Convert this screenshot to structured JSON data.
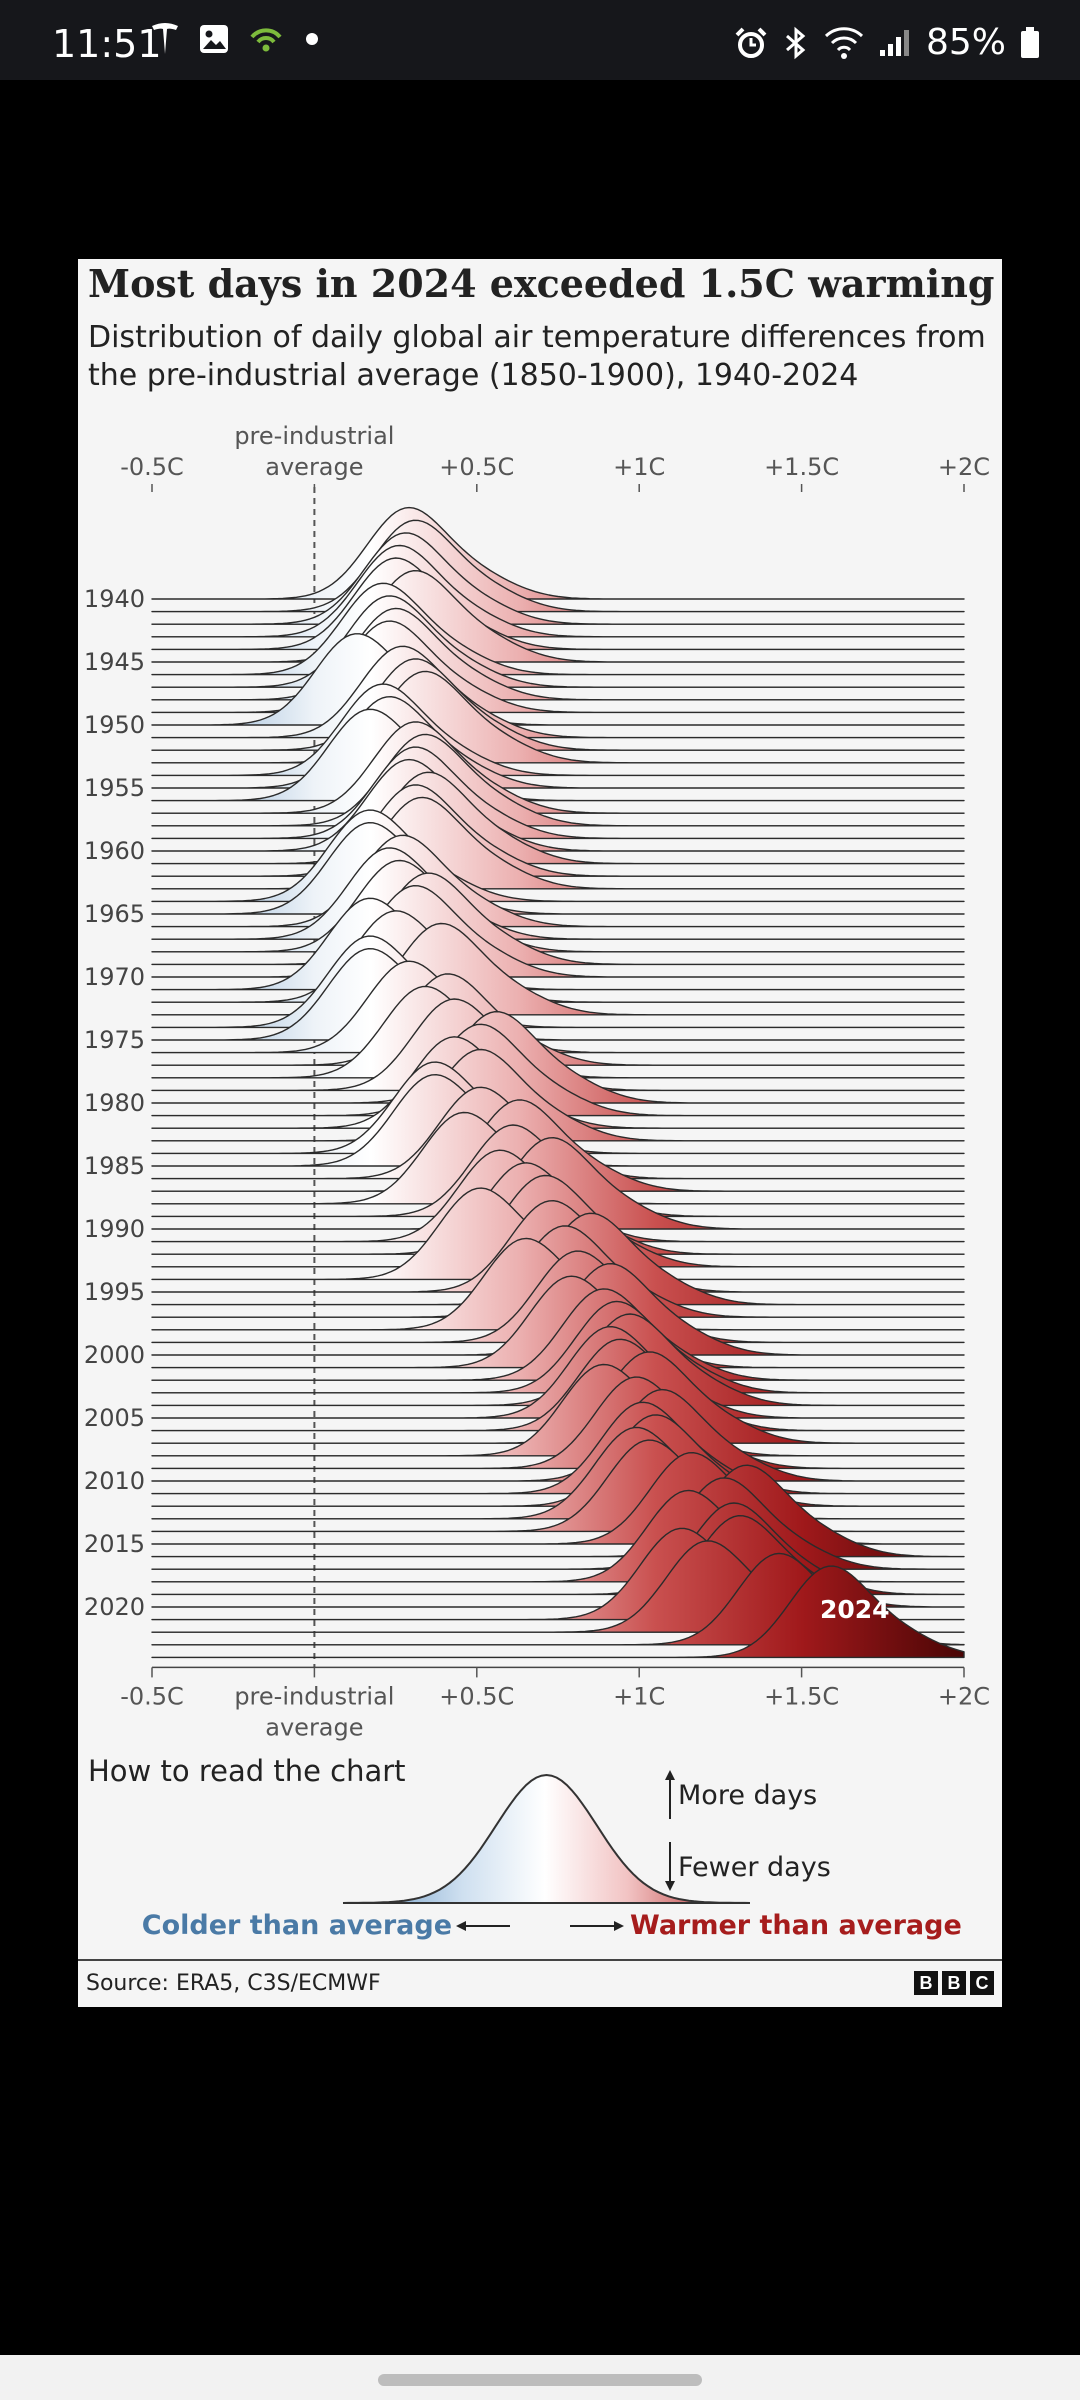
{
  "status_bar": {
    "time": "11:51",
    "battery": "85%",
    "left_icons": [
      "tesla-icon",
      "gallery-icon",
      "hotspot-icon",
      "dot-icon"
    ],
    "right_icons": [
      "alarm-icon",
      "bluetooth-icon",
      "wifi-icon",
      "signal-icon",
      "battery-icon"
    ]
  },
  "figure": {
    "title": "Most days in 2024 exceeded 1.5C warming",
    "subtitle": "Distribution of daily global air temperature differences from the pre-industrial average (1850-1900), 1940-2024",
    "source": "Source: ERA5, C3S/ECMWF",
    "logo_letters": [
      "B",
      "B",
      "C"
    ]
  },
  "chart_data": {
    "type": "ridgeline",
    "x_ticks": [
      "-0.5C",
      "pre-industrial average",
      "+0.5C",
      "+1C",
      "+1.5C",
      "+2C"
    ],
    "x_tick_values": [
      -0.5,
      0,
      0.5,
      1,
      1.5,
      2
    ],
    "xlim": [
      -0.5,
      2
    ],
    "y_tick_labels": [
      "1940",
      "1945",
      "1950",
      "1955",
      "1960",
      "1965",
      "1970",
      "1975",
      "1980",
      "1985",
      "1990",
      "1995",
      "2000",
      "2005",
      "2010",
      "2015",
      "2020"
    ],
    "years": [
      1940,
      2024
    ],
    "highlight_label": "2024",
    "annual_peak_anomaly_c": [
      0.28,
      0.3,
      0.27,
      0.25,
      0.24,
      0.3,
      0.2,
      0.22,
      0.24,
      0.22,
      0.12,
      0.26,
      0.3,
      0.33,
      0.2,
      0.22,
      0.16,
      0.3,
      0.33,
      0.3,
      0.28,
      0.34,
      0.3,
      0.32,
      0.16,
      0.16,
      0.26,
      0.22,
      0.25,
      0.34,
      0.3,
      0.16,
      0.24,
      0.38,
      0.16,
      0.16,
      0.28,
      0.4,
      0.33,
      0.42,
      0.55,
      0.5,
      0.42,
      0.5,
      0.36,
      0.36,
      0.5,
      0.62,
      0.45,
      0.6,
      0.72,
      0.56,
      0.64,
      0.7,
      0.5,
      0.72,
      0.84,
      0.76,
      0.64,
      0.8,
      0.9,
      0.78,
      0.88,
      0.92,
      0.96,
      0.9,
      0.93,
      1.02,
      0.88,
      0.98,
      1.06,
      1.0,
      1.04,
      0.98,
      1.02,
      1.15,
      1.32,
      1.25,
      1.14,
      1.28,
      1.3,
      1.12,
      1.2,
      1.42,
      1.58
    ]
  },
  "legend": {
    "heading": "How to read the chart",
    "more_days": "More days",
    "fewer_days": "Fewer days",
    "colder": "Colder than average",
    "warmer": "Warmer than average",
    "colder_color": "#4a7aa6",
    "warmer_color": "#a61c1c"
  }
}
